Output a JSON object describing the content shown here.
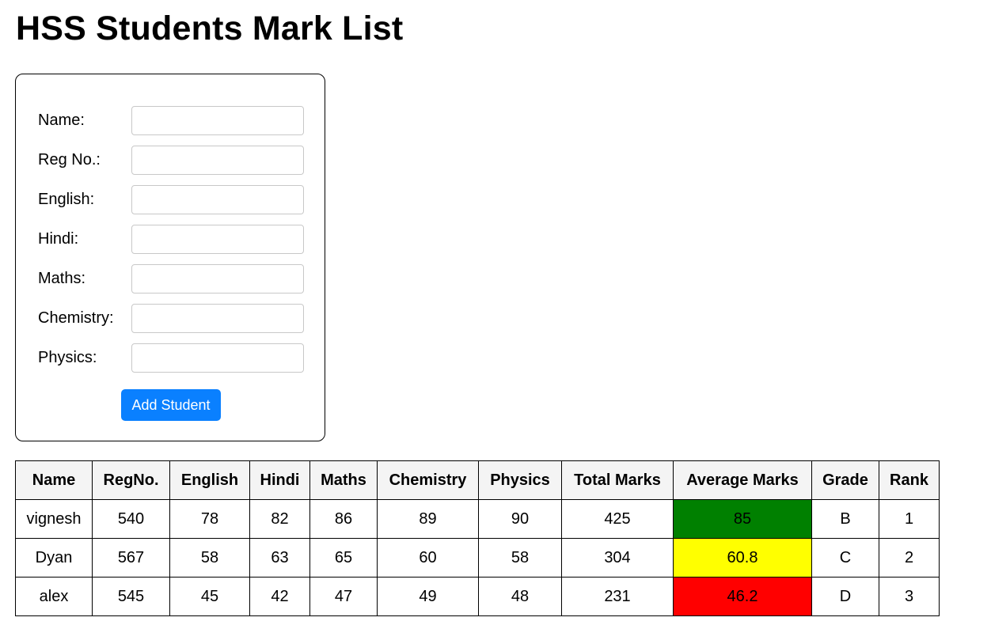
{
  "page": {
    "title": "HSS Students Mark List"
  },
  "form": {
    "fields": [
      {
        "label": "Name:",
        "value": "",
        "name": "name"
      },
      {
        "label": "Reg No.:",
        "value": "",
        "name": "reg-no"
      },
      {
        "label": "English:",
        "value": "",
        "name": "english"
      },
      {
        "label": "Hindi:",
        "value": "",
        "name": "hindi"
      },
      {
        "label": "Maths:",
        "value": "",
        "name": "maths"
      },
      {
        "label": "Chemistry:",
        "value": "",
        "name": "chemistry"
      },
      {
        "label": "Physics:",
        "value": "",
        "name": "physics"
      }
    ],
    "submit_label": "Add Student",
    "submit_color": "#0a80ff"
  },
  "table": {
    "headers": [
      "Name",
      "RegNo.",
      "English",
      "Hindi",
      "Maths",
      "Chemistry",
      "Physics",
      "Total Marks",
      "Average Marks",
      "Grade",
      "Rank"
    ],
    "rows": [
      [
        "vignesh",
        "540",
        "78",
        "82",
        "86",
        "89",
        "90",
        "425",
        "85",
        "B",
        "1"
      ],
      [
        "Dyan",
        "567",
        "58",
        "63",
        "65",
        "60",
        "58",
        "304",
        "60.8",
        "C",
        "2"
      ],
      [
        "alex",
        "545",
        "45",
        "42",
        "47",
        "49",
        "48",
        "231",
        "46.2",
        "D",
        "3"
      ]
    ],
    "average_colors": [
      "#008000",
      "#ffff00",
      "#ff0000"
    ],
    "header_bg": "#f4f4f4"
  }
}
